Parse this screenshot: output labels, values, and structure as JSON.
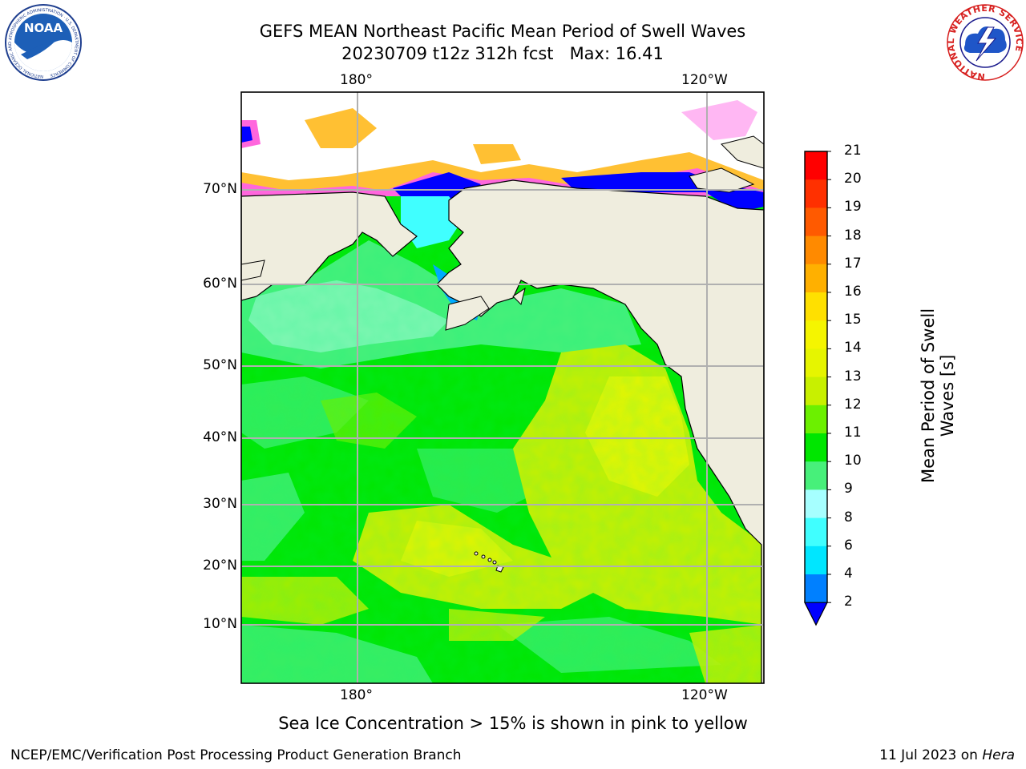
{
  "title_line1": "GEFS MEAN Northeast Pacific Mean Period of Swell Waves",
  "title_line2": "20230709 t12z 312h fcst   Max: 16.41",
  "map": {
    "lon_labels_top": [
      "180°",
      "120°W"
    ],
    "lon_labels_bottom": [
      "180°",
      "120°W"
    ],
    "lat_labels": [
      "70°N",
      "60°N",
      "50°N",
      "40°N",
      "30°N",
      "20°N",
      "10°N"
    ],
    "land_color": "#efedde",
    "grid_color": "#b0b0b0"
  },
  "colorbar": {
    "title": "Mean Period of Swell Waves [s]",
    "ticks": [
      "21",
      "20",
      "19",
      "18",
      "17",
      "16",
      "15",
      "14",
      "13",
      "12",
      "11",
      "10",
      "9",
      "8",
      "6",
      "4",
      "2"
    ],
    "colors": [
      "#ff0000",
      "#ff3000",
      "#ff5a00",
      "#ff8a00",
      "#ffb000",
      "#ffe000",
      "#f5f500",
      "#e6f500",
      "#c8f000",
      "#6cf000",
      "#00e600",
      "#47f07a",
      "#a6ffff",
      "#40ffff",
      "#00e6ff",
      "#0080ff"
    ],
    "under_color": "#0000ff"
  },
  "ice_note": "Sea Ice Concentration > 15% is shown in pink to yellow",
  "credit_left": "NCEP/EMC/Verification Post Processing Product Generation Branch",
  "credit_date": "11 Jul 2023 on ",
  "credit_host": "Hera",
  "logos": {
    "noaa": "NOAA",
    "noaa_ring": "NATIONAL OCEANIC AND ATMOSPHERIC ADMINISTRATION · U.S. DEPARTMENT OF COMMERCE",
    "nws_ring": "NATIONAL WEATHER SERVICE"
  }
}
